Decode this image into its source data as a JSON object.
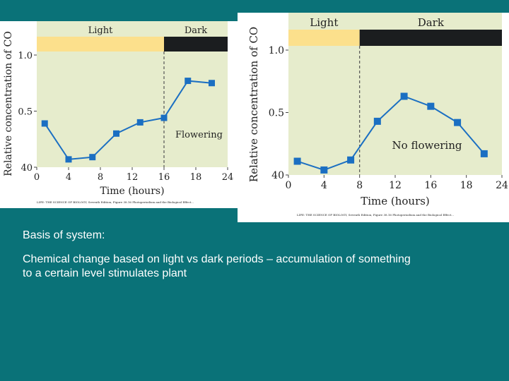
{
  "colors": {
    "slide_bg": "#0a7278",
    "plot_bg": "#e6eccc",
    "light_bar": "#fce08c",
    "dark_bar": "#1b1d1f",
    "marker": "#1b6fc2",
    "text": "#222222",
    "caption_text": "#ffffff"
  },
  "chart_data": [
    {
      "type": "line",
      "band_labels": {
        "light": "Light",
        "dark": "Dark"
      },
      "light_dark_boundary": 16,
      "xlabel": "Time (hours)",
      "ylabel": "Relative concentration of CO",
      "xlim": [
        0,
        24
      ],
      "ylim": [
        0,
        1.0
      ],
      "x_ticks": [
        "0",
        "4",
        "8",
        "12",
        "16",
        "18",
        "24"
      ],
      "y_ticks": [
        "40",
        "0.5",
        "1.0"
      ],
      "annotation": "Flowering",
      "series": [
        {
          "x": [
            1,
            4,
            7,
            10,
            13,
            16,
            19,
            22
          ],
          "y": [
            0.39,
            0.07,
            0.09,
            0.3,
            0.4,
            0.44,
            0.77,
            0.75
          ]
        }
      ],
      "footnote": "LIFE: THE SCIENCE OF BIOLOGY, Seventh Edition, Figure 38.16 Photoperiodism and the Biological Effect..."
    },
    {
      "type": "line",
      "band_labels": {
        "light": "Light",
        "dark": "Dark"
      },
      "light_dark_boundary": 8,
      "xlabel": "Time (hours)",
      "ylabel": "Relative concentration of CO",
      "xlim": [
        0,
        24
      ],
      "ylim": [
        0,
        1.0
      ],
      "x_ticks": [
        "0",
        "4",
        "8",
        "12",
        "16",
        "18",
        "24"
      ],
      "y_ticks": [
        "40",
        "0.5",
        "1.0"
      ],
      "annotation": "No flowering",
      "series": [
        {
          "x": [
            1,
            4,
            7,
            10,
            13,
            16,
            19,
            22
          ],
          "y": [
            0.11,
            0.04,
            0.12,
            0.43,
            0.63,
            0.55,
            0.42,
            0.17
          ]
        }
      ],
      "footnote": "LIFE: THE SCIENCE OF BIOLOGY, Seventh Edition, Figure 38.16 Photoperiodism and the Biological Effect..."
    }
  ],
  "caption": {
    "heading": "Basis of system:",
    "body": "Chemical change based on light vs dark periods – accumulation of something to a certain level stimulates plant"
  }
}
